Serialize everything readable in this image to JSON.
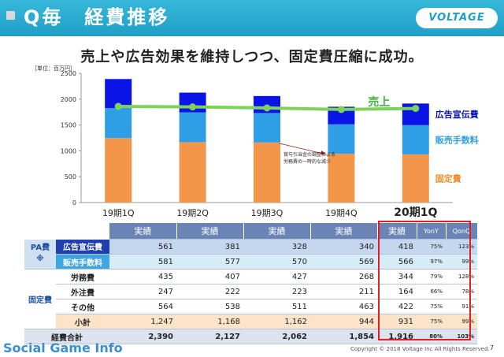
{
  "header": {
    "title": "Q毎　経費推移",
    "logo": "VOLTAGE"
  },
  "headline": "売上や広告効果を維持しつつ、固定費圧縮に成功。",
  "unit_label": "［単位：百万円］",
  "chart_data": {
    "type": "bar",
    "stacked": true,
    "categories": [
      "19期1Q",
      "19期2Q",
      "19期3Q",
      "19期4Q",
      "20期1Q"
    ],
    "series": [
      {
        "name": "固定費",
        "values": [
          1247,
          1168,
          1162,
          944,
          931
        ],
        "color": "#f4964a"
      },
      {
        "name": "販売手数料",
        "values": [
          581,
          577,
          570,
          569,
          566
        ],
        "color": "#2e9fe6"
      },
      {
        "name": "広告宣伝費",
        "values": [
          561,
          381,
          328,
          340,
          418
        ],
        "color": "#0a14e6"
      }
    ],
    "line_series": {
      "name": "売上",
      "values": [
        1860,
        1850,
        1830,
        1800,
        1820
      ],
      "color": "#7dd35a"
    },
    "yticks": [
      0,
      500,
      1000,
      1500,
      2000,
      2500
    ],
    "ylim": [
      0,
      2500
    ],
    "annotation": "賞与引当金の調整による\n労務費の一時的な減少"
  },
  "table": {
    "headers": [
      "実績",
      "実績",
      "実績",
      "実績",
      "実績",
      "YonY",
      "QonQ"
    ],
    "pa_group": "PA費\n※",
    "fixed_group": "固定費",
    "rows": [
      {
        "label": "広告宣伝費",
        "v": [
          "561",
          "381",
          "328",
          "340",
          "418"
        ],
        "yony": "75%",
        "qonq": "123%",
        "cls": "r-pa1"
      },
      {
        "label": "販売手数料",
        "v": [
          "581",
          "577",
          "570",
          "569",
          "566"
        ],
        "yony": "97%",
        "qonq": "99%",
        "cls": "r-pa2"
      },
      {
        "label": "労務費",
        "v": [
          "435",
          "407",
          "427",
          "268",
          "344"
        ],
        "yony": "79%",
        "qonq": "128%",
        "cls": "r-fix"
      },
      {
        "label": "外注費",
        "v": [
          "247",
          "222",
          "223",
          "211",
          "164"
        ],
        "yony": "66%",
        "qonq": "78%",
        "cls": "r-fix"
      },
      {
        "label": "その他",
        "v": [
          "564",
          "538",
          "511",
          "463",
          "422"
        ],
        "yony": "75%",
        "qonq": "91%",
        "cls": "r-fix"
      },
      {
        "label": "小計",
        "v": [
          "1,247",
          "1,168",
          "1,162",
          "944",
          "931"
        ],
        "yony": "75%",
        "qonq": "99%",
        "cls": "r-sub"
      },
      {
        "label": "経費合計",
        "v": [
          "2,390",
          "2,127",
          "2,062",
          "1,854",
          "1,916"
        ],
        "yony": "80%",
        "qonq": "103%",
        "cls": "r-tot"
      }
    ]
  },
  "footer": {
    "brand": "Social Game Info",
    "copyright": "Copyright © 2018 Voltage Inc  All Rights Reserved.",
    "page": "7"
  }
}
